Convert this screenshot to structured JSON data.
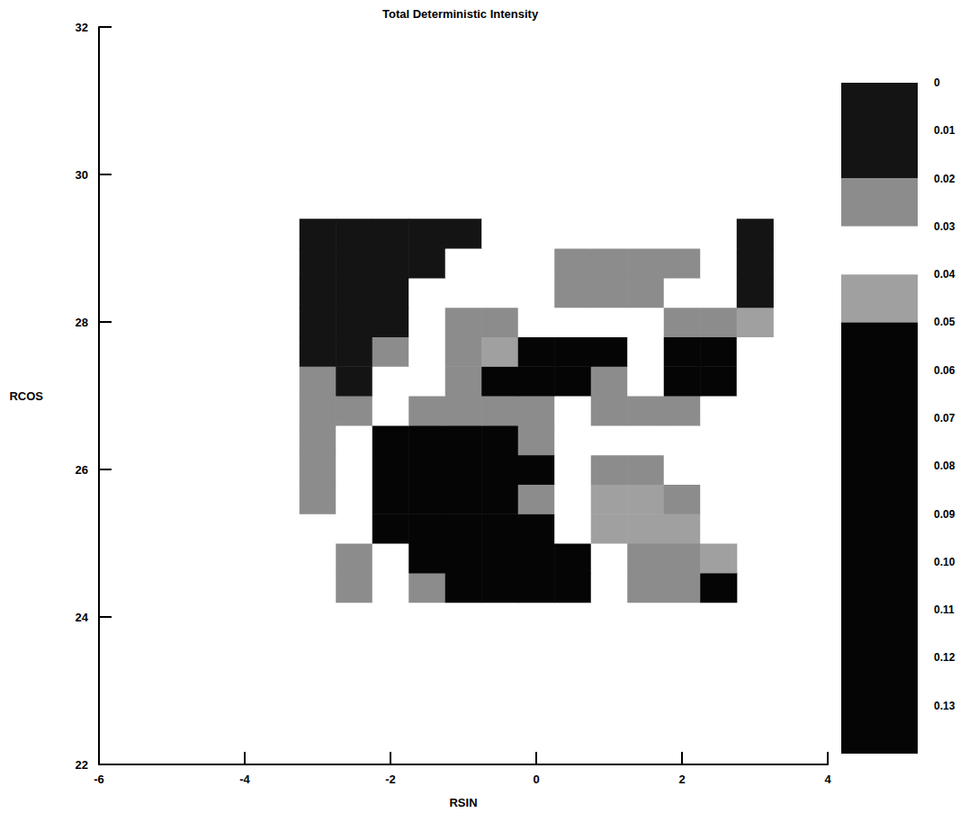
{
  "chart_data": {
    "type": "heatmap",
    "title": "Total Deterministic Intensity",
    "x_label": "RSIN",
    "y_label": "RCOS",
    "xlim": [
      -6,
      4
    ],
    "xticks": [
      -6,
      -4,
      -2,
      0,
      2,
      4
    ],
    "ylim": [
      22,
      32
    ],
    "yticks": [
      22,
      24,
      26,
      28,
      30,
      32
    ],
    "grid": false,
    "x_edges": [
      -3.25,
      -2.75,
      -2.25,
      -1.75,
      -1.25,
      -0.75,
      -0.25,
      0.25,
      0.75,
      1.25,
      1.75,
      2.25,
      2.75,
      3.25
    ],
    "y_edges": [
      24.2,
      24.6,
      25.0,
      25.4,
      25.8,
      26.2,
      26.6,
      27.0,
      27.4,
      27.8,
      28.2,
      28.6,
      29.0,
      29.4
    ],
    "cells": [
      [
        null,
        0.025,
        0.035,
        0.025,
        0.08,
        0.08,
        0.08,
        0.08,
        0.035,
        0.025,
        0.025,
        0.08,
        null
      ],
      [
        null,
        0.025,
        0.035,
        0.08,
        0.08,
        0.08,
        0.08,
        0.08,
        0.035,
        0.025,
        0.025,
        0.045,
        null
      ],
      [
        null,
        0.035,
        0.08,
        0.08,
        0.08,
        0.08,
        0.08,
        0.035,
        0.045,
        0.045,
        0.045,
        0.035,
        null
      ],
      [
        0.025,
        0.035,
        0.08,
        0.08,
        0.08,
        0.08,
        0.025,
        0.035,
        0.045,
        0.045,
        0.025,
        0.035,
        null
      ],
      [
        0.025,
        0.035,
        0.08,
        0.08,
        0.08,
        0.08,
        0.08,
        0.035,
        0.025,
        0.025,
        0.035,
        0.035,
        0.035
      ],
      [
        0.025,
        0.035,
        0.08,
        0.08,
        0.08,
        0.08,
        0.025,
        0.035,
        0.035,
        0.035,
        0.035,
        0.035,
        0.035
      ],
      [
        0.025,
        0.025,
        0.035,
        0.025,
        0.025,
        0.025,
        0.025,
        0.035,
        0.025,
        0.025,
        0.025,
        0.035,
        0.035
      ],
      [
        0.025,
        0.01,
        0.035,
        0.035,
        0.025,
        0.08,
        0.08,
        0.08,
        0.025,
        0.035,
        0.08,
        0.08,
        0.035
      ],
      [
        0.01,
        0.01,
        0.025,
        0.035,
        0.025,
        0.045,
        0.08,
        0.08,
        0.08,
        0.035,
        0.08,
        0.08,
        0.035
      ],
      [
        0.01,
        0.01,
        0.01,
        0.035,
        0.025,
        0.025,
        0.035,
        0.035,
        0.035,
        0.035,
        0.025,
        0.025,
        0.045
      ],
      [
        0.01,
        0.01,
        0.01,
        0.035,
        0.035,
        0.035,
        0.035,
        0.025,
        0.025,
        0.025,
        0.035,
        0.035,
        0.01
      ],
      [
        0.01,
        0.01,
        0.01,
        0.01,
        0.035,
        0.035,
        0.035,
        0.025,
        0.025,
        0.025,
        0.025,
        0.035,
        0.01
      ],
      [
        0.01,
        0.01,
        0.01,
        0.01,
        0.01,
        0.035,
        0.035,
        0.035,
        0.035,
        0.035,
        0.035,
        0.035,
        0.01
      ]
    ],
    "colorbar": {
      "range": [
        0,
        0.14
      ],
      "ticks": [
        0,
        0.01,
        0.02,
        0.03,
        0.04,
        0.05,
        0.06,
        0.07,
        0.08,
        0.09,
        {
          "value": 0.1,
          "label": "0.10"
        },
        0.11,
        0.12,
        0.13
      ],
      "pieces": [
        {
          "min": 0,
          "max": 0.02,
          "color": "#141414"
        },
        {
          "min": 0.02,
          "max": 0.03,
          "color": "#8c8c8c"
        },
        {
          "min": 0.03,
          "max": 0.04,
          "color": "#ffffff"
        },
        {
          "min": 0.04,
          "max": 0.05,
          "color": "#a0a0a0"
        },
        {
          "min": 0.05,
          "max": 0.14,
          "color": "#050505"
        }
      ]
    }
  }
}
